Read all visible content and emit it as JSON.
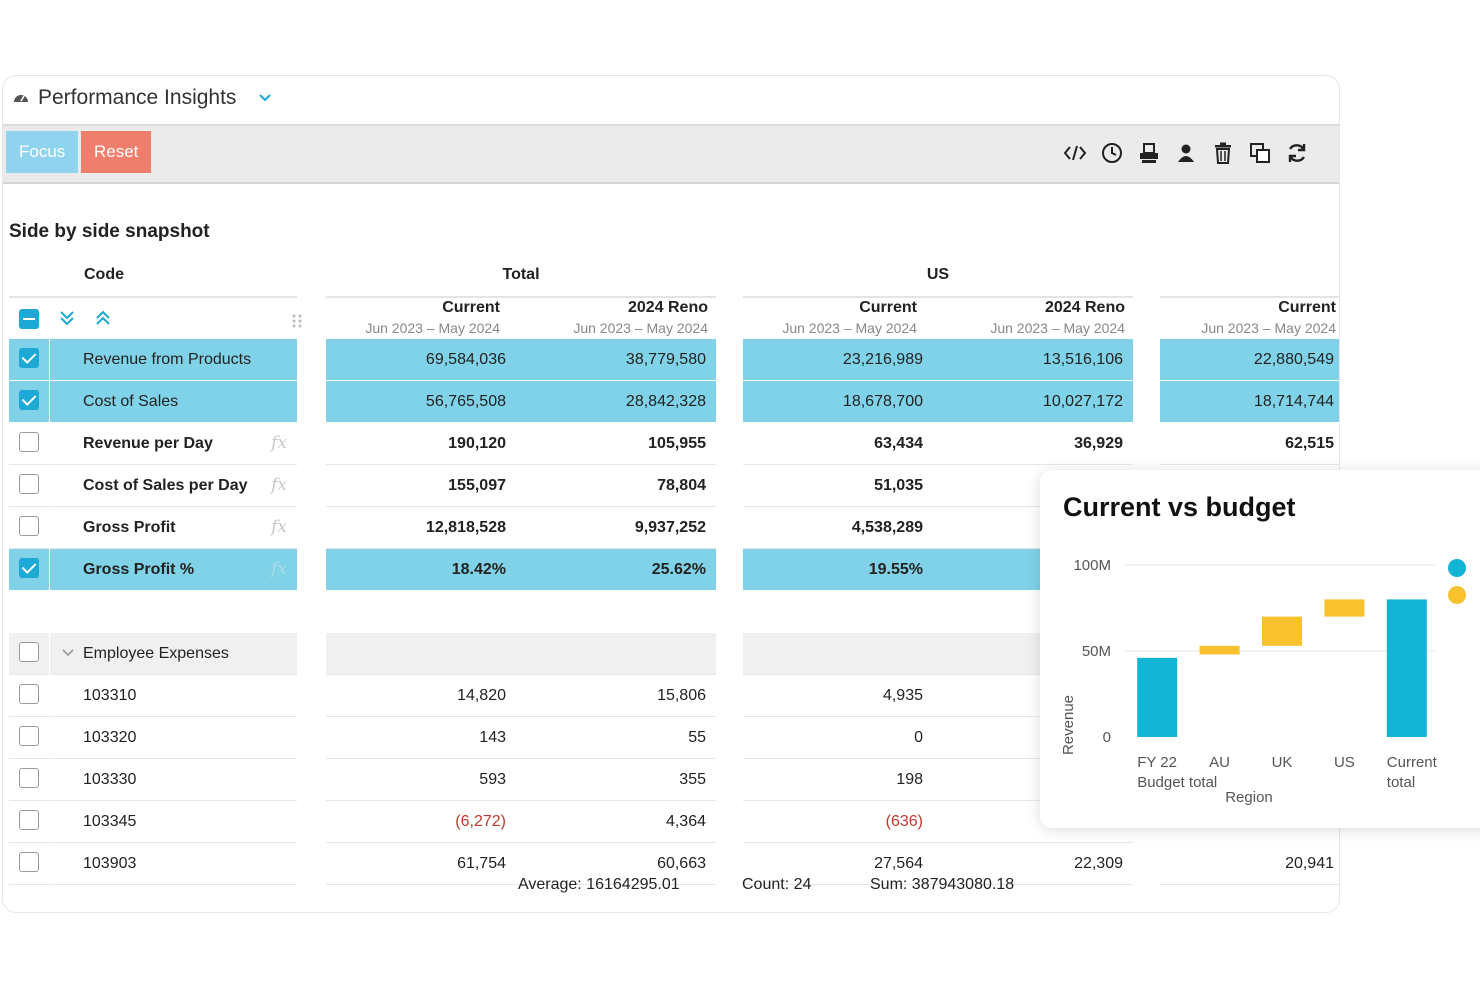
{
  "app": {
    "title": "Performance Insights"
  },
  "toolbar": {
    "focus_label": "Focus",
    "reset_label": "Reset",
    "icons": [
      "code-icon",
      "clock-icon",
      "print-icon",
      "user-share-icon",
      "trash-icon",
      "copy-icon",
      "refresh-icon"
    ]
  },
  "section_title": "Side by side snapshot",
  "table": {
    "code_header": "Code",
    "groups": [
      "Total",
      "US"
    ],
    "columns": [
      {
        "title": "Current",
        "period": "Jun 2023 – May 2024"
      },
      {
        "title": "2024 Reno",
        "period": "Jun 2023 – May 2024"
      },
      {
        "title": "Current",
        "period": "Jun 2023 – May 2024"
      },
      {
        "title": "2024 Reno",
        "period": "Jun 2023 – May 2024"
      },
      {
        "title": "Current",
        "period": "Jun 2023 – May 2024"
      }
    ],
    "rows": [
      {
        "label": "Revenue from Products",
        "checked": true,
        "fx": false,
        "values": [
          "69,584,036",
          "38,779,580",
          "23,216,989",
          "13,516,106",
          "22,880,549"
        ]
      },
      {
        "label": "Cost of Sales",
        "checked": true,
        "fx": false,
        "values": [
          "56,765,508",
          "28,842,328",
          "18,678,700",
          "10,027,172",
          "18,714,744"
        ]
      },
      {
        "label": "Revenue per Day",
        "checked": false,
        "fx": true,
        "values": [
          "190,120",
          "105,955",
          "63,434",
          "36,929",
          "62,515"
        ]
      },
      {
        "label": "Cost of Sales per Day",
        "checked": false,
        "fx": true,
        "values": [
          "155,097",
          "78,804",
          "51,035",
          "",
          ""
        ]
      },
      {
        "label": "Gross Profit",
        "checked": false,
        "fx": true,
        "values": [
          "12,818,528",
          "9,937,252",
          "4,538,289",
          "",
          ""
        ]
      },
      {
        "label": "Gross Profit %",
        "checked": true,
        "fx": true,
        "values": [
          "18.42%",
          "25.62%",
          "19.55%",
          "",
          ""
        ]
      }
    ],
    "group_label": "Employee Expenses",
    "detail_rows": [
      {
        "label": "103310",
        "values": [
          "14,820",
          "15,806",
          "4,935",
          "",
          ""
        ]
      },
      {
        "label": "103320",
        "values": [
          "143",
          "55",
          "0",
          "",
          ""
        ]
      },
      {
        "label": "103330",
        "values": [
          "593",
          "355",
          "198",
          "",
          ""
        ]
      },
      {
        "label": "103345",
        "values": [
          "(6,272)",
          "4,364",
          "(636)",
          "",
          ""
        ]
      },
      {
        "label": "103903",
        "values": [
          "61,754",
          "60,663",
          "27,564",
          "22,309",
          "20,941"
        ]
      }
    ],
    "fx_label": "fx"
  },
  "footer": {
    "average": "Average: 16164295.01",
    "count": "Count: 24",
    "sum": "Sum: 387943080.18"
  },
  "colors": {
    "accent": "#1ea8d6",
    "selected_row": "#7fd2e8",
    "reset": "#f07e6c",
    "focus": "#8fd3ee",
    "bar_total": "#12b5d6",
    "bar_delta": "#f7c22e",
    "negative": "#c0392b"
  },
  "chart_data": {
    "type": "bar",
    "title": "Current vs budget",
    "xlabel": "Region",
    "ylabel": "Revenue",
    "categories": [
      "FY 22\nBudget total",
      "AU",
      "UK",
      "US",
      "Current\ntotal"
    ],
    "bars": [
      {
        "category": "FY 22\nBudget total",
        "start": 0,
        "end": 46,
        "kind": "total"
      },
      {
        "category": "AU",
        "start": 48,
        "end": 53,
        "kind": "delta"
      },
      {
        "category": "UK",
        "start": 53,
        "end": 70,
        "kind": "delta"
      },
      {
        "category": "US",
        "start": 70,
        "end": 80,
        "kind": "delta"
      },
      {
        "category": "Current\ntotal",
        "start": 0,
        "end": 80,
        "kind": "total"
      }
    ],
    "yticks": [
      {
        "value": 0,
        "label": "0"
      },
      {
        "value": 50,
        "label": "50M"
      },
      {
        "value": 100,
        "label": "100M"
      }
    ],
    "ylim": [
      0,
      100
    ],
    "legend_position": "right"
  }
}
